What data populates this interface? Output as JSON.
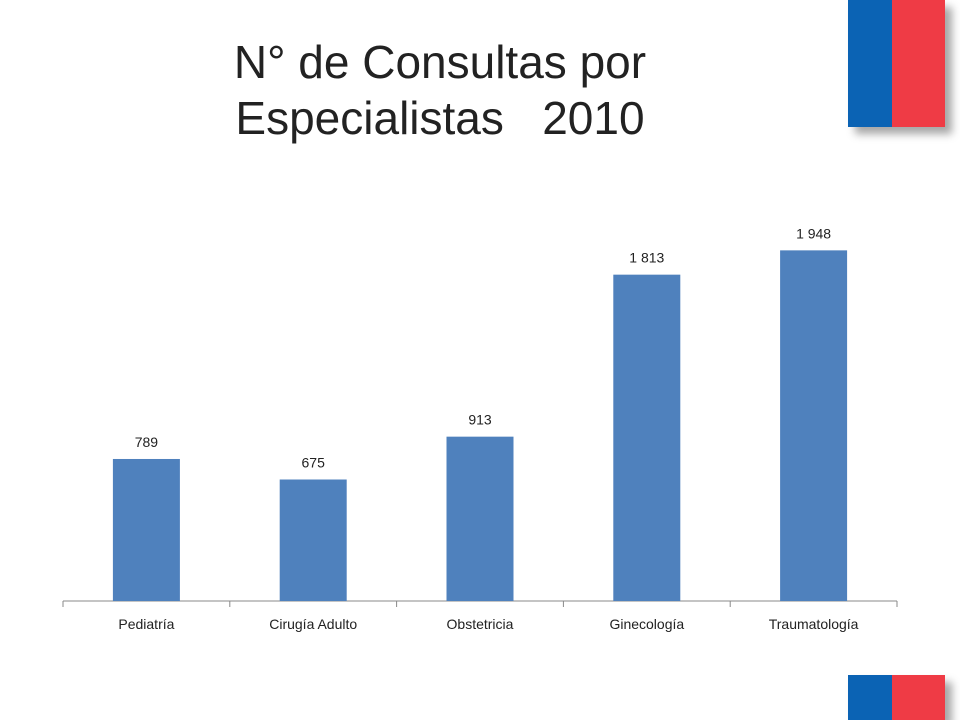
{
  "title": {
    "line1": "N° de Consultas por",
    "line2": "Especialistas   2010"
  },
  "colors": {
    "bar": "#4f81bd",
    "flag_blue": "#0b63b4",
    "flag_red": "#ef3b45",
    "axis": "#888888"
  },
  "chart_data": {
    "type": "bar",
    "categories": [
      "Pediatría",
      "Cirugía Adulto",
      "Obstetricia",
      "Ginecología",
      "Traumatología"
    ],
    "values": [
      789,
      675,
      913,
      1813,
      1948
    ],
    "value_labels": [
      "789",
      "675",
      "913",
      "1 813",
      "1 948"
    ],
    "title": "N° de Consultas por Especialistas 2010",
    "xlabel": "",
    "ylabel": "",
    "ylim": [
      0,
      2200
    ],
    "grid": false,
    "legend": "none"
  }
}
